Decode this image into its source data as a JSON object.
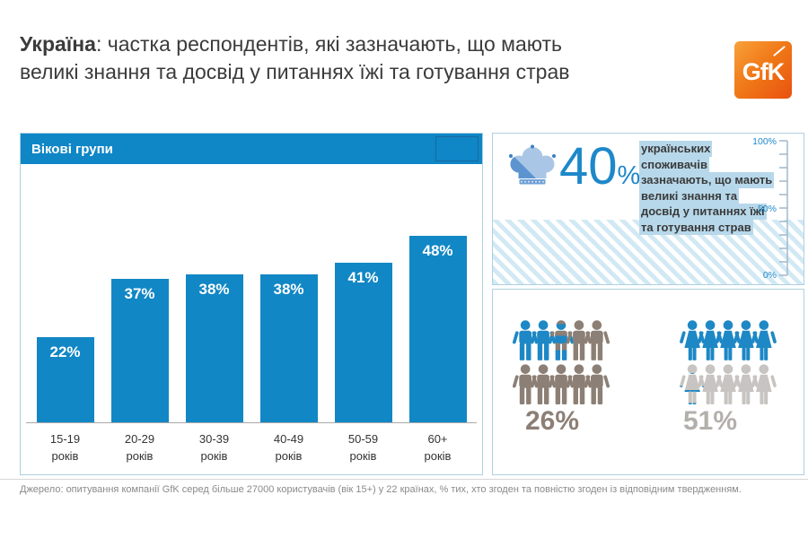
{
  "title": {
    "bold": "Україна",
    "line1_rest": ": частка респондентів, які зазначають, що мають",
    "line2": "великі знання та досвід у питаннях їжі та готування страв"
  },
  "logo": {
    "text": "GfK"
  },
  "chart_data": [
    {
      "type": "bar",
      "title": "Вікові групи",
      "categories": [
        "15-19 років",
        "20-29 років",
        "30-39 років",
        "40-49 років",
        "50-59 років",
        "60+ років"
      ],
      "values": [
        22,
        37,
        38,
        38,
        41,
        48
      ],
      "labels": [
        "22%",
        "37%",
        "38%",
        "38%",
        "41%",
        "48%"
      ],
      "bar_color": "#1287c5",
      "ylim": [
        0,
        55
      ],
      "grid": false,
      "legend": "none"
    },
    {
      "type": "kpi",
      "value": 40,
      "label": "40%",
      "description_lines": [
        "українських",
        "споживачів",
        "зазначають, що мають",
        "великі знання та",
        "досвід у питаннях їжі",
        "та готування страв"
      ],
      "scale": {
        "max": "100%",
        "mid": "50%",
        "min": "0%"
      },
      "fill_percent": 40
    },
    {
      "type": "pictograph",
      "series": [
        {
          "key": "men",
          "label": "26%",
          "value": 26
        },
        {
          "key": "women",
          "label": "51%",
          "value": 51
        }
      ],
      "icons_per_group": 10,
      "active_color": "#1d88c5",
      "men_inactive_color": "#8c7f75",
      "women_inactive_color": "#c7c4c1"
    }
  ],
  "kpi": {
    "value_text": "40",
    "percent_sign": "%",
    "scale_top": "100%",
    "scale_mid": "50%",
    "scale_bottom": "0%"
  },
  "age_panel": {
    "header": "Вікові групи"
  },
  "gender": {
    "men_label": "26%",
    "women_label": "51%"
  },
  "colors": {
    "accent_blue": "#1287c5",
    "header_blue": "#0f86c6",
    "highlight": "#b7d8ea",
    "men_taupe": "#8c7f75",
    "women_gray": "#c7c4c1",
    "logo_orange": "#ec5b12"
  },
  "footer": {
    "source": "Джерело: опитування компанії GfK серед більше 27000 користувачів (вік 15+) у 22 країнах, % тих, хто згоден та повністю згоден із відповідним твердженням."
  }
}
